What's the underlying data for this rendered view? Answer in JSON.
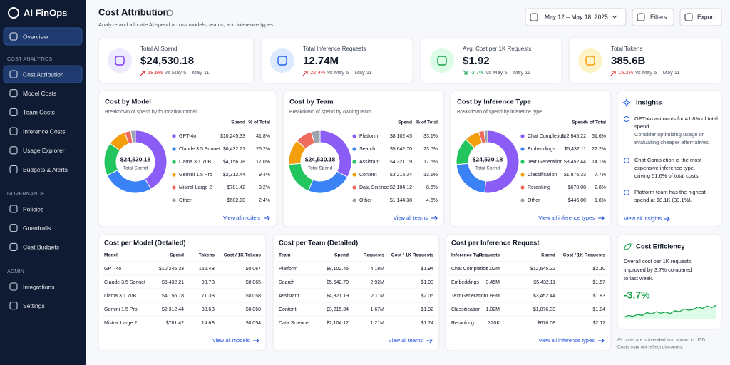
{
  "sidebar": {
    "brand": "AI FinOps",
    "overview": "Overview",
    "sections": [
      {
        "title": "COST ANALYTICS",
        "items": [
          "Cost Attribution",
          "Model Costs",
          "Team Costs",
          "Inference Costs",
          "Usage Explorer",
          "Budgets & Alerts"
        ]
      },
      {
        "title": "GOVERNANCE",
        "items": [
          "Policies",
          "Guardrails",
          "Cost Budgets"
        ]
      },
      {
        "title": "ADMIN",
        "items": [
          "Integrations",
          "Settings"
        ]
      }
    ]
  },
  "header": {
    "title": "Cost Attribution",
    "subtitle": "Analyze and allocate AI spend across models, teams, and inference types.",
    "date_range": "May 12 – May 18, 2025",
    "filters": "Filters",
    "export": "Export"
  },
  "kpis": [
    {
      "label": "Total AI Spend",
      "value": "$24,530.18",
      "change": "18.6%",
      "comparison": "vs May 5 – May 11",
      "color": "#7c3aed"
    },
    {
      "label": "Total Inference Requests",
      "value": "12.74M",
      "change": "22.4%",
      "comparison": "vs May 5 – May 11",
      "color": "#2563eb"
    },
    {
      "label": "Avg. Cost per 1K Requests",
      "value": "$1.92",
      "change": "-3.7%",
      "comparison": "vs May 5 – May 11",
      "color": "#16a34a"
    },
    {
      "label": "Total Tokens",
      "value": "385.6B",
      "change": "15.2%",
      "comparison": "vs May 5 – May 11",
      "color": "#f59e0b"
    }
  ],
  "chart_data": [
    {
      "type": "donut",
      "title": "Cost by Model",
      "subtitle": "Breakdown of spend by foundation model",
      "center_value": "$24,530.18",
      "center_label": "Total Spend",
      "columns": [
        "Spend",
        "% of Total"
      ],
      "categories": [
        "GPT-4o",
        "Claude 3.5 Sonnet",
        "Llama 3.1 70B",
        "Gemini 1.5 Pro",
        "Mistral Large 2",
        "Other"
      ],
      "spend": [
        "$10,245.33",
        "$6,432.21",
        "$4,156.78",
        "$2,312.44",
        "$781.42",
        "$602.00"
      ],
      "values": [
        41.8,
        26.2,
        17.0,
        9.4,
        3.2,
        2.4
      ],
      "value_labels": [
        "41.8%",
        "26.2%",
        "17.0%",
        "9.4%",
        "3.2%",
        "2.4%"
      ],
      "colors": [
        "#8b5cf6",
        "#3b82f6",
        "#22c55e",
        "#f59e0b",
        "#ef6b5e",
        "#9ca3af"
      ],
      "link": "View all models"
    },
    {
      "type": "donut",
      "title": "Cost by Team",
      "subtitle": "Breakdown of spend by owning team",
      "center_value": "$24,530.18",
      "center_label": "Total Spend",
      "columns": [
        "Spend",
        "% of Total"
      ],
      "categories": [
        "Platform",
        "Search",
        "Assistant",
        "Content",
        "Data Science",
        "Other"
      ],
      "spend": [
        "$8,102.45",
        "$5,642.70",
        "$4,321.19",
        "$3,215.34",
        "$2,104.12",
        "$1,144.38"
      ],
      "values": [
        33.1,
        23.0,
        17.6,
        13.1,
        8.6,
        4.6
      ],
      "value_labels": [
        "33.1%",
        "23.0%",
        "17.6%",
        "13.1%",
        "8.6%",
        "4.6%"
      ],
      "colors": [
        "#8b5cf6",
        "#3b82f6",
        "#22c55e",
        "#f59e0b",
        "#ef6b5e",
        "#9ca3af"
      ],
      "link": "View all teams"
    },
    {
      "type": "donut",
      "title": "Cost by Inference Type",
      "subtitle": "Breakdown of spend by inference type",
      "center_value": "$24,530.18",
      "center_label": "Total Spend",
      "columns": [
        "Spend",
        "% of Total"
      ],
      "categories": [
        "Chat Completion",
        "Embeddings",
        "Text Generation",
        "Classification",
        "Reranking",
        "Other"
      ],
      "spend": [
        "$12,645.22",
        "$5,432.11",
        "$3,452.44",
        "$1,876.33",
        "$678.08",
        "$446.00"
      ],
      "values": [
        51.6,
        22.2,
        14.1,
        7.7,
        2.8,
        1.8
      ],
      "value_labels": [
        "51.6%",
        "22.2%",
        "14.1%",
        "7.7%",
        "2.8%",
        "1.8%"
      ],
      "colors": [
        "#8b5cf6",
        "#3b82f6",
        "#22c55e",
        "#f59e0b",
        "#ef6b5e",
        "#9ca3af"
      ],
      "link": "View all inference types"
    }
  ],
  "tables": [
    {
      "title": "Cost per Model (Detailed)",
      "columns": [
        "Model",
        "Spend",
        "Tokens",
        "Cost / 1K Tokens"
      ],
      "rows": [
        [
          "GPT-4o",
          "$10,245.33",
          "152.4B",
          "$0.067"
        ],
        [
          "Claude 3.5 Sonnet",
          "$6,432.21",
          "98.7B",
          "$0.065"
        ],
        [
          "Llama 3.1 70B",
          "$4,156.78",
          "71.3B",
          "$0.058"
        ],
        [
          "Gemini 1.5 Pro",
          "$2,312.44",
          "38.6B",
          "$0.060"
        ],
        [
          "Mistral Large 2",
          "$781.42",
          "14.6B",
          "$0.054"
        ]
      ],
      "link": "View all models"
    },
    {
      "title": "Cost per Team (Detailed)",
      "columns": [
        "Team",
        "Spend",
        "Requests",
        "Cost / 1K Requests"
      ],
      "rows": [
        [
          "Platform",
          "$8,102.45",
          "4.18M",
          "$1.94"
        ],
        [
          "Search",
          "$5,642.70",
          "2.92M",
          "$1.93"
        ],
        [
          "Assistant",
          "$4,321.19",
          "2.11M",
          "$2.05"
        ],
        [
          "Content",
          "$3,215.34",
          "1.67M",
          "$1.92"
        ],
        [
          "Data Science",
          "$2,104.12",
          "1.21M",
          "$1.74"
        ]
      ],
      "link": "View all teams"
    },
    {
      "title": "Cost per Inference Request",
      "columns": [
        "Inference Type",
        "Requests",
        "Spend",
        "Cost / 1K Requests"
      ],
      "rows": [
        [
          "Chat Completion",
          "6.02M",
          "$12,645.22",
          "$2.10"
        ],
        [
          "Embeddings",
          "3.45M",
          "$5,432.11",
          "$1.57"
        ],
        [
          "Text Generation",
          "1.89M",
          "$3,452.44",
          "$1.83"
        ],
        [
          "Classification",
          "1.02M",
          "$1,876.33",
          "$1.84"
        ],
        [
          "Reranking",
          "320K",
          "$678.08",
          "$2.12"
        ]
      ],
      "link": "View all inference types"
    }
  ],
  "insights": {
    "title": "Insights",
    "items": [
      {
        "text": [
          "GPT-4o accounts for 41.8% of total",
          "spend."
        ],
        "note": [
          "Consider optimizing usage or",
          "evaluating cheaper alternatives."
        ]
      },
      {
        "text": [
          "Chat Completion is the most",
          "expensive inference type,",
          "driving 51.6% of total costs."
        ],
        "note": []
      },
      {
        "text": [
          "Platform team has the highest",
          "spend at $8.1K (33.1%)."
        ],
        "note": []
      }
    ],
    "link": "View all insights"
  },
  "efficiency": {
    "title": "Cost Efficiency",
    "text": [
      "Overall cost per 1K requests",
      "improved by 3.7% compared",
      "to last week."
    ],
    "value": "-3.7%",
    "trend": [
      2,
      3,
      2.5,
      3.5,
      3,
      4.5,
      3.8,
      5,
      4.2,
      4.8,
      4,
      5.5,
      5,
      6.5,
      5.8,
      6.2,
      7.5,
      6.8,
      8,
      7.2,
      8.5
    ]
  },
  "footnote": [
    "All costs are unblended and shown in USD.",
    "Costs may not reflect discounts."
  ]
}
